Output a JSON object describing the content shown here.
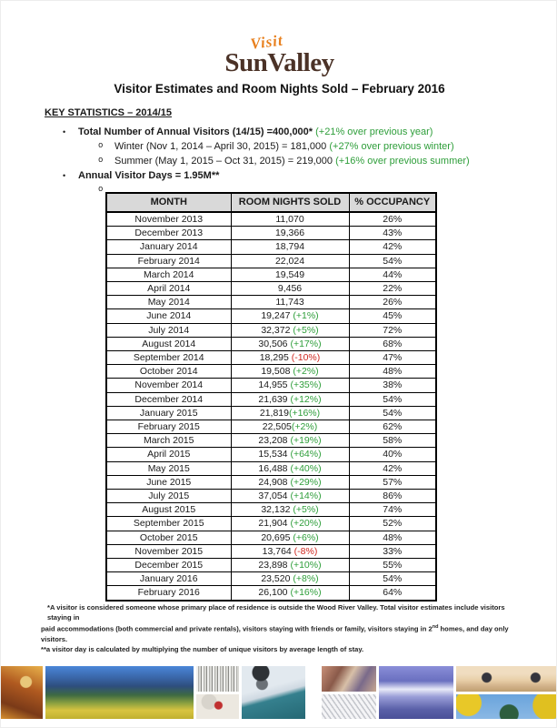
{
  "logo": {
    "script": "Visit",
    "brand": "SunValley"
  },
  "title": "Visitor Estimates and Room Nights Sold – February 2016",
  "key_statistics": {
    "heading": "KEY STATISTICS – 2014/15",
    "bullet_glyph": "•",
    "sub_bullet_glyph": "o",
    "bullet1": {
      "bold": "Total Number of Annual Visitors (14/15) =400,000*",
      "green": "(+21% over previous year)"
    },
    "sub1": {
      "text": "Winter (Nov 1, 2014 – April 30, 2015) = 181,000",
      "green": "(+27% over previous winter)"
    },
    "sub2": {
      "text": "Summer (May 1, 2015 – Oct 31, 2015) = 219,000",
      "green": "(+16% over previous summer)"
    },
    "bullet2": {
      "bold": "Annual Visitor Days = 1.95M**"
    }
  },
  "table": {
    "headers": [
      "MONTH",
      "ROOM NIGHTS SOLD",
      "% OCCUPANCY"
    ],
    "rows": [
      {
        "month": "November 2013",
        "nights": "11,070",
        "change": "",
        "occupancy": "26%"
      },
      {
        "month": "December 2013",
        "nights": "19,366",
        "change": "",
        "occupancy": "43%"
      },
      {
        "month": "January 2014",
        "nights": "18,794",
        "change": "",
        "occupancy": "42%"
      },
      {
        "month": "February 2014",
        "nights": "22,024",
        "change": "",
        "occupancy": "54%"
      },
      {
        "month": "March 2014",
        "nights": "19,549",
        "change": "",
        "occupancy": "44%"
      },
      {
        "month": "April 2014",
        "nights": "9,456",
        "change": "",
        "occupancy": "22%"
      },
      {
        "month": "May 2014",
        "nights": "11,743",
        "change": "",
        "occupancy": "26%"
      },
      {
        "month": "June 2014",
        "nights": "19,247",
        "change": " (+1%)",
        "occupancy": "45%"
      },
      {
        "month": "July 2014",
        "nights": "32,372",
        "change": " (+5%)",
        "occupancy": "72%"
      },
      {
        "month": "August 2014",
        "nights": "30,506",
        "change": " (+17%)",
        "occupancy": "68%"
      },
      {
        "month": "September 2014",
        "nights": "18,295",
        "change": " (-10%)",
        "occupancy": "47%"
      },
      {
        "month": "October 2014",
        "nights": "19,508",
        "change": " (+2%)",
        "occupancy": "48%"
      },
      {
        "month": "November 2014",
        "nights": "14,955",
        "change": " (+35%)",
        "occupancy": "38%"
      },
      {
        "month": "December 2014",
        "nights": "21,639",
        "change": " (+12%)",
        "occupancy": "54%"
      },
      {
        "month": "January 2015",
        "nights": "21,819",
        "change": "(+16%)",
        "occupancy": "54%"
      },
      {
        "month": "February 2015",
        "nights": "22,505",
        "change": "(+2%)",
        "occupancy": "62%"
      },
      {
        "month": "March 2015",
        "nights": "23,208",
        "change": " (+19%)",
        "occupancy": "58%"
      },
      {
        "month": "April 2015",
        "nights": "15,534",
        "change": " (+64%)",
        "occupancy": "40%"
      },
      {
        "month": "May 2015",
        "nights": "16,488",
        "change": " (+40%)",
        "occupancy": "42%"
      },
      {
        "month": "June 2015",
        "nights": "24,908",
        "change": " (+29%)",
        "occupancy": "57%"
      },
      {
        "month": "July 2015",
        "nights": "37,054",
        "change": " (+14%)",
        "occupancy": "86%"
      },
      {
        "month": "August 2015",
        "nights": "32,132",
        "change": " (+5%)",
        "occupancy": "74%"
      },
      {
        "month": "September 2015",
        "nights": "21,904",
        "change": " (+20%)",
        "occupancy": "52%"
      },
      {
        "month": "October 2015",
        "nights": "20,695",
        "change": " (+6%)",
        "occupancy": "48%"
      },
      {
        "month": "November 2015",
        "nights": "13,764",
        "change": " (-8%)",
        "occupancy": "33%"
      },
      {
        "month": "December 2015",
        "nights": "23,898",
        "change": " (+10%)",
        "occupancy": "55%"
      },
      {
        "month": "January 2016",
        "nights": "23,520",
        "change": " (+8%)",
        "occupancy": "54%"
      },
      {
        "month": "February 2016",
        "nights": "26,100",
        "change": " (+16%)",
        "occupancy": "64%"
      }
    ]
  },
  "footnotes": {
    "line1": "*A visitor is considered someone whose primary place of residence is outside the Wood River Valley.  Total visitor estimates include visitors staying in",
    "line2_pre": "paid accommodations (both commercial and private rentals), visitors staying with friends or family, visitors staying in 2",
    "line2_sup": "nd",
    "line2_post": " homes, and day only visitors.",
    "line3": "**a visitor day is calculated by multiplying the number of unique visitors by average length of stay."
  },
  "photos": [
    "rock-climber",
    "wildflower-mountain",
    "aspen-trees",
    "red-jacket-skier",
    "skier-portrait",
    "gondola-passengers",
    "corduroy-snow",
    "winter-mountain-town",
    "ice-skaters-sunset",
    "autumn-foliage"
  ],
  "colors": {
    "positive_green": "#2e9e3a",
    "negative_red": "#d02820",
    "brand_orange": "#e8801e",
    "brand_brown": "#4b3227",
    "table_header_gray": "#d9d9d9"
  }
}
